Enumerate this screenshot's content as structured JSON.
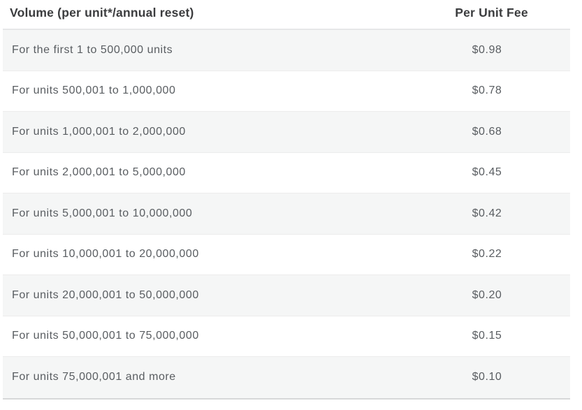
{
  "table": {
    "headers": {
      "volume": "Volume (per unit*/annual reset)",
      "fee": "Per Unit Fee"
    },
    "rows": [
      {
        "volume": "For the first 1 to 500,000 units",
        "fee": "$0.98"
      },
      {
        "volume": "For units 500,001 to 1,000,000",
        "fee": "$0.78"
      },
      {
        "volume": "For units 1,000,001 to 2,000,000",
        "fee": "$0.68"
      },
      {
        "volume": "For units 2,000,001 to 5,000,000",
        "fee": "$0.45"
      },
      {
        "volume": "For units 5,000,001 to 10,000,000",
        "fee": "$0.42"
      },
      {
        "volume": "For units 10,000,001 to 20,000,000",
        "fee": "$0.22"
      },
      {
        "volume": "For units 20,000,001 to 50,000,000",
        "fee": "$0.20"
      },
      {
        "volume": "For units 50,000,001 to 75,000,000",
        "fee": "$0.15"
      },
      {
        "volume": "For units 75,000,001 and more",
        "fee": "$0.10"
      }
    ],
    "colors": {
      "header_text": "#3b3c3e",
      "body_text": "#595d61",
      "alt_row_background": "#f5f6f6",
      "row_border": "#ececec",
      "header_border": "#e6e7e8",
      "table_bottom_border": "#d7d8d9",
      "page_background": "#ffffff"
    }
  }
}
